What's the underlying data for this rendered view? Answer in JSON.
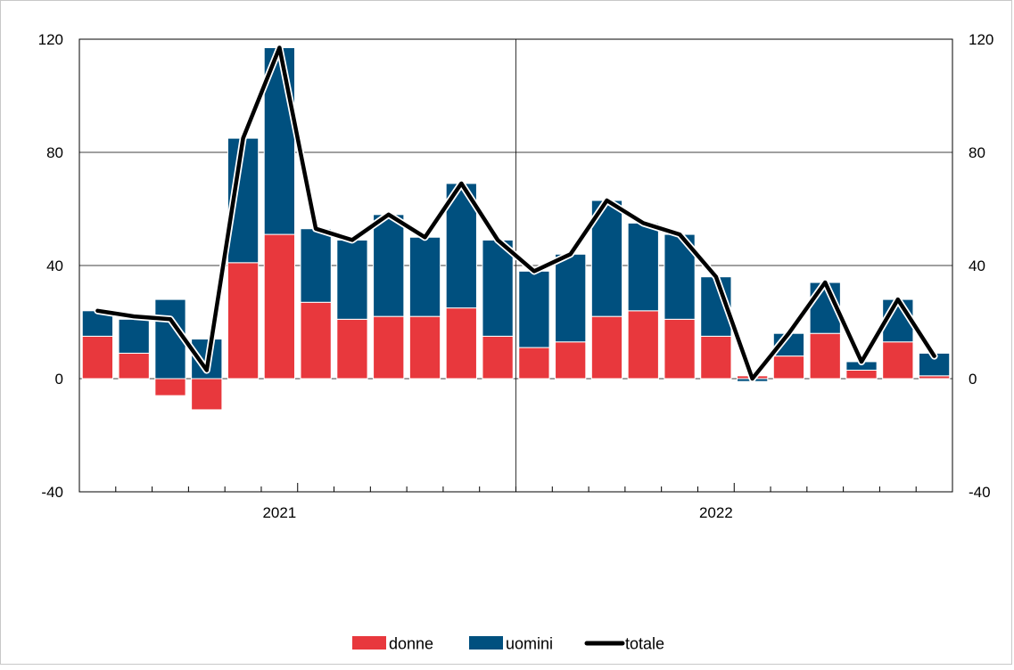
{
  "chart_data": {
    "type": "bar",
    "stacked": true,
    "categories": [
      "2021-01",
      "2021-02",
      "2021-03",
      "2021-04",
      "2021-05",
      "2021-06",
      "2021-07",
      "2021-08",
      "2021-09",
      "2021-10",
      "2021-11",
      "2021-12",
      "2022-01",
      "2022-02",
      "2022-03",
      "2022-04",
      "2022-05",
      "2022-06",
      "2022-07",
      "2022-08",
      "2022-09",
      "2022-10",
      "2022-11",
      "2022-12"
    ],
    "x_tick_labels": [
      {
        "index": 5.5,
        "label": "2021"
      },
      {
        "index": 17.5,
        "label": "2022"
      }
    ],
    "series": [
      {
        "name": "donne",
        "kind": "bar",
        "color": "#e8383d",
        "values": [
          15,
          9,
          -6,
          -11,
          41,
          51,
          27,
          21,
          22,
          22,
          25,
          15,
          11,
          13,
          22,
          24,
          21,
          15,
          1,
          8,
          16,
          3,
          13,
          1
        ]
      },
      {
        "name": "uomini",
        "kind": "bar",
        "color": "#00507f",
        "values": [
          9,
          12,
          28,
          14,
          44,
          66,
          26,
          28,
          36,
          28,
          44,
          34,
          27,
          31,
          41,
          31,
          30,
          21,
          -1,
          8,
          18,
          3,
          15,
          8
        ]
      },
      {
        "name": "totale",
        "kind": "line",
        "color": "#000000",
        "values": [
          24,
          22,
          21,
          3,
          85,
          117,
          53,
          49,
          58,
          50,
          69,
          49,
          38,
          44,
          63,
          55,
          51,
          36,
          0,
          16,
          34,
          6,
          28,
          8
        ]
      }
    ],
    "ylim": [
      -40,
      120
    ],
    "yticks": [
      -40,
      0,
      40,
      80,
      120
    ],
    "y_axis_right": true,
    "grid": true,
    "legend_position": "bottom-center"
  }
}
